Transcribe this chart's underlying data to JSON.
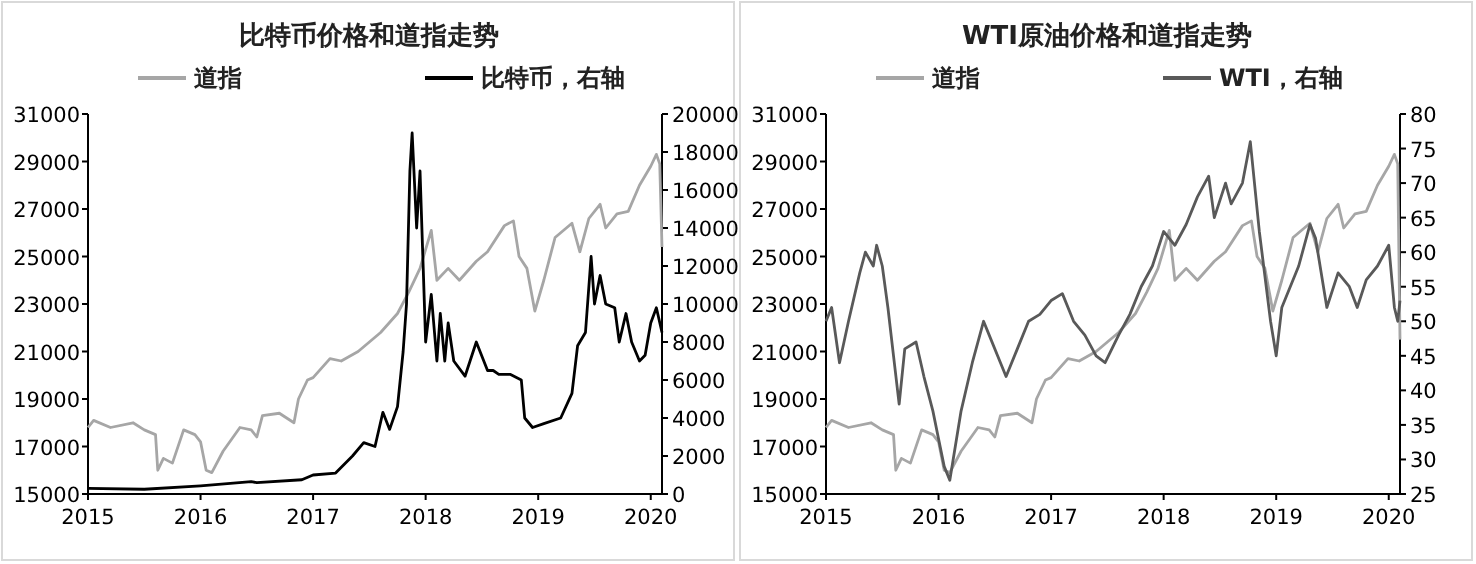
{
  "chart_data": [
    {
      "type": "line",
      "title": "比特币价格和道指走势",
      "legend": "top",
      "xlim": [
        2015,
        2020.1
      ],
      "xticks": [
        2015,
        2016,
        2017,
        2018,
        2019,
        2020
      ],
      "ylim": [
        15000,
        31000
      ],
      "yticks": [
        15000,
        17000,
        19000,
        21000,
        23000,
        25000,
        27000,
        29000,
        31000
      ],
      "y2lim": [
        0,
        20000
      ],
      "y2ticks": [
        0,
        2000,
        4000,
        6000,
        8000,
        10000,
        12000,
        14000,
        16000,
        18000,
        20000
      ],
      "series": [
        {
          "name": "道指",
          "color": "#a6a6a6",
          "x": [
            2015.0,
            2015.05,
            2015.2,
            2015.4,
            2015.5,
            2015.6,
            2015.62,
            2015.67,
            2015.75,
            2015.85,
            2015.95,
            2016.0,
            2016.05,
            2016.1,
            2016.2,
            2016.35,
            2016.45,
            2016.5,
            2016.55,
            2016.7,
            2016.83,
            2016.87,
            2016.95,
            2017.0,
            2017.15,
            2017.25,
            2017.4,
            2017.5,
            2017.6,
            2017.75,
            2017.85,
            2017.95,
            2018.05,
            2018.1,
            2018.2,
            2018.3,
            2018.45,
            2018.55,
            2018.7,
            2018.78,
            2018.83,
            2018.9,
            2018.97,
            2019.05,
            2019.15,
            2019.3,
            2019.37,
            2019.45,
            2019.55,
            2019.6,
            2019.7,
            2019.8,
            2019.9,
            2020.0,
            2020.05,
            2020.08,
            2020.1
          ],
          "values": [
            17800,
            18100,
            17800,
            18000,
            17700,
            17500,
            16000,
            16500,
            16300,
            17700,
            17500,
            17200,
            16000,
            15900,
            16800,
            17800,
            17700,
            17400,
            18300,
            18400,
            18000,
            19000,
            19800,
            19900,
            20700,
            20600,
            21000,
            21400,
            21800,
            22600,
            23500,
            24500,
            26100,
            24000,
            24500,
            24000,
            24800,
            25200,
            26300,
            26500,
            25000,
            24500,
            22700,
            24000,
            25800,
            26400,
            25200,
            26600,
            27200,
            26200,
            26800,
            26900,
            28000,
            28800,
            29300,
            28900,
            25400
          ]
        },
        {
          "name": "比特币，右轴",
          "color": "#000000",
          "axis": "y2",
          "x": [
            2015.0,
            2015.5,
            2016.0,
            2016.45,
            2016.5,
            2016.9,
            2017.0,
            2017.2,
            2017.35,
            2017.45,
            2017.55,
            2017.62,
            2017.68,
            2017.75,
            2017.8,
            2017.83,
            2017.86,
            2017.88,
            2017.92,
            2017.95,
            2018.0,
            2018.05,
            2018.1,
            2018.13,
            2018.17,
            2018.2,
            2018.25,
            2018.35,
            2018.45,
            2018.55,
            2018.6,
            2018.65,
            2018.75,
            2018.85,
            2018.88,
            2018.95,
            2019.05,
            2019.2,
            2019.3,
            2019.35,
            2019.42,
            2019.47,
            2019.5,
            2019.55,
            2019.6,
            2019.68,
            2019.72,
            2019.78,
            2019.83,
            2019.9,
            2019.95,
            2020.0,
            2020.05,
            2020.1
          ],
          "values": [
            300,
            250,
            430,
            650,
            600,
            750,
            1000,
            1100,
            2000,
            2700,
            2500,
            4300,
            3400,
            4600,
            7500,
            10000,
            17000,
            19000,
            14000,
            17000,
            8000,
            10500,
            7000,
            9500,
            7000,
            9000,
            7000,
            6200,
            8000,
            6500,
            6500,
            6300,
            6300,
            6000,
            4000,
            3500,
            3700,
            4000,
            5300,
            7800,
            8500,
            12500,
            10000,
            11500,
            10000,
            9800,
            8000,
            9500,
            8000,
            7000,
            7300,
            9000,
            9800,
            8500
          ]
        }
      ]
    },
    {
      "type": "line",
      "title": "WTI原油价格和道指走势",
      "legend": "top",
      "xlim": [
        2015,
        2020.1
      ],
      "xticks": [
        2015,
        2016,
        2017,
        2018,
        2019,
        2020
      ],
      "ylim": [
        15000,
        31000
      ],
      "yticks": [
        15000,
        17000,
        19000,
        21000,
        23000,
        25000,
        27000,
        29000,
        31000
      ],
      "y2lim": [
        25,
        80
      ],
      "y2ticks": [
        25,
        30,
        35,
        40,
        45,
        50,
        55,
        60,
        65,
        70,
        75,
        80
      ],
      "series": [
        {
          "name": "道指",
          "color": "#a6a6a6",
          "x": [
            2015.0,
            2015.05,
            2015.2,
            2015.4,
            2015.5,
            2015.6,
            2015.62,
            2015.67,
            2015.75,
            2015.85,
            2015.95,
            2016.0,
            2016.05,
            2016.1,
            2016.2,
            2016.35,
            2016.45,
            2016.5,
            2016.55,
            2016.7,
            2016.83,
            2016.87,
            2016.95,
            2017.0,
            2017.15,
            2017.25,
            2017.4,
            2017.5,
            2017.6,
            2017.75,
            2017.85,
            2017.95,
            2018.05,
            2018.1,
            2018.2,
            2018.3,
            2018.45,
            2018.55,
            2018.7,
            2018.78,
            2018.83,
            2018.9,
            2018.97,
            2019.05,
            2019.15,
            2019.3,
            2019.37,
            2019.45,
            2019.55,
            2019.6,
            2019.7,
            2019.8,
            2019.9,
            2020.0,
            2020.05,
            2020.08,
            2020.1
          ],
          "values": [
            17800,
            18100,
            17800,
            18000,
            17700,
            17500,
            16000,
            16500,
            16300,
            17700,
            17500,
            17200,
            16000,
            15900,
            16800,
            17800,
            17700,
            17400,
            18300,
            18400,
            18000,
            19000,
            19800,
            19900,
            20700,
            20600,
            21000,
            21400,
            21800,
            22600,
            23500,
            24500,
            26100,
            24000,
            24500,
            24000,
            24800,
            25200,
            26300,
            26500,
            25000,
            24500,
            22700,
            24000,
            25800,
            26400,
            25200,
            26600,
            27200,
            26200,
            26800,
            26900,
            28000,
            28800,
            29300,
            28900,
            21500
          ]
        },
        {
          "name": "WTI，右轴",
          "color": "#595959",
          "axis": "y2",
          "x": [
            2015.0,
            2015.05,
            2015.12,
            2015.2,
            2015.3,
            2015.35,
            2015.42,
            2015.45,
            2015.5,
            2015.55,
            2015.6,
            2015.65,
            2015.7,
            2015.8,
            2015.87,
            2015.95,
            2016.0,
            2016.05,
            2016.1,
            2016.2,
            2016.3,
            2016.4,
            2016.45,
            2016.55,
            2016.6,
            2016.7,
            2016.8,
            2016.9,
            2017.0,
            2017.1,
            2017.2,
            2017.3,
            2017.4,
            2017.48,
            2017.6,
            2017.7,
            2017.8,
            2017.9,
            2018.0,
            2018.1,
            2018.2,
            2018.3,
            2018.4,
            2018.45,
            2018.55,
            2018.6,
            2018.7,
            2018.77,
            2018.85,
            2018.95,
            2019.0,
            2019.05,
            2019.2,
            2019.3,
            2019.35,
            2019.45,
            2019.55,
            2019.65,
            2019.72,
            2019.8,
            2019.9,
            2020.0,
            2020.05,
            2020.08,
            2020.1
          ],
          "values": [
            50,
            52,
            44,
            50,
            57,
            60,
            58,
            61,
            58,
            52,
            45,
            38,
            46,
            47,
            42,
            37,
            33,
            29,
            27,
            37,
            44,
            50,
            48,
            44,
            42,
            46,
            50,
            51,
            53,
            54,
            50,
            48,
            45,
            44,
            48,
            51,
            55,
            58,
            63,
            61,
            64,
            68,
            71,
            65,
            70,
            67,
            70,
            76,
            63,
            50,
            45,
            52,
            58,
            64,
            62,
            52,
            57,
            55,
            52,
            56,
            58,
            61,
            52,
            50,
            53
          ]
        }
      ]
    }
  ]
}
